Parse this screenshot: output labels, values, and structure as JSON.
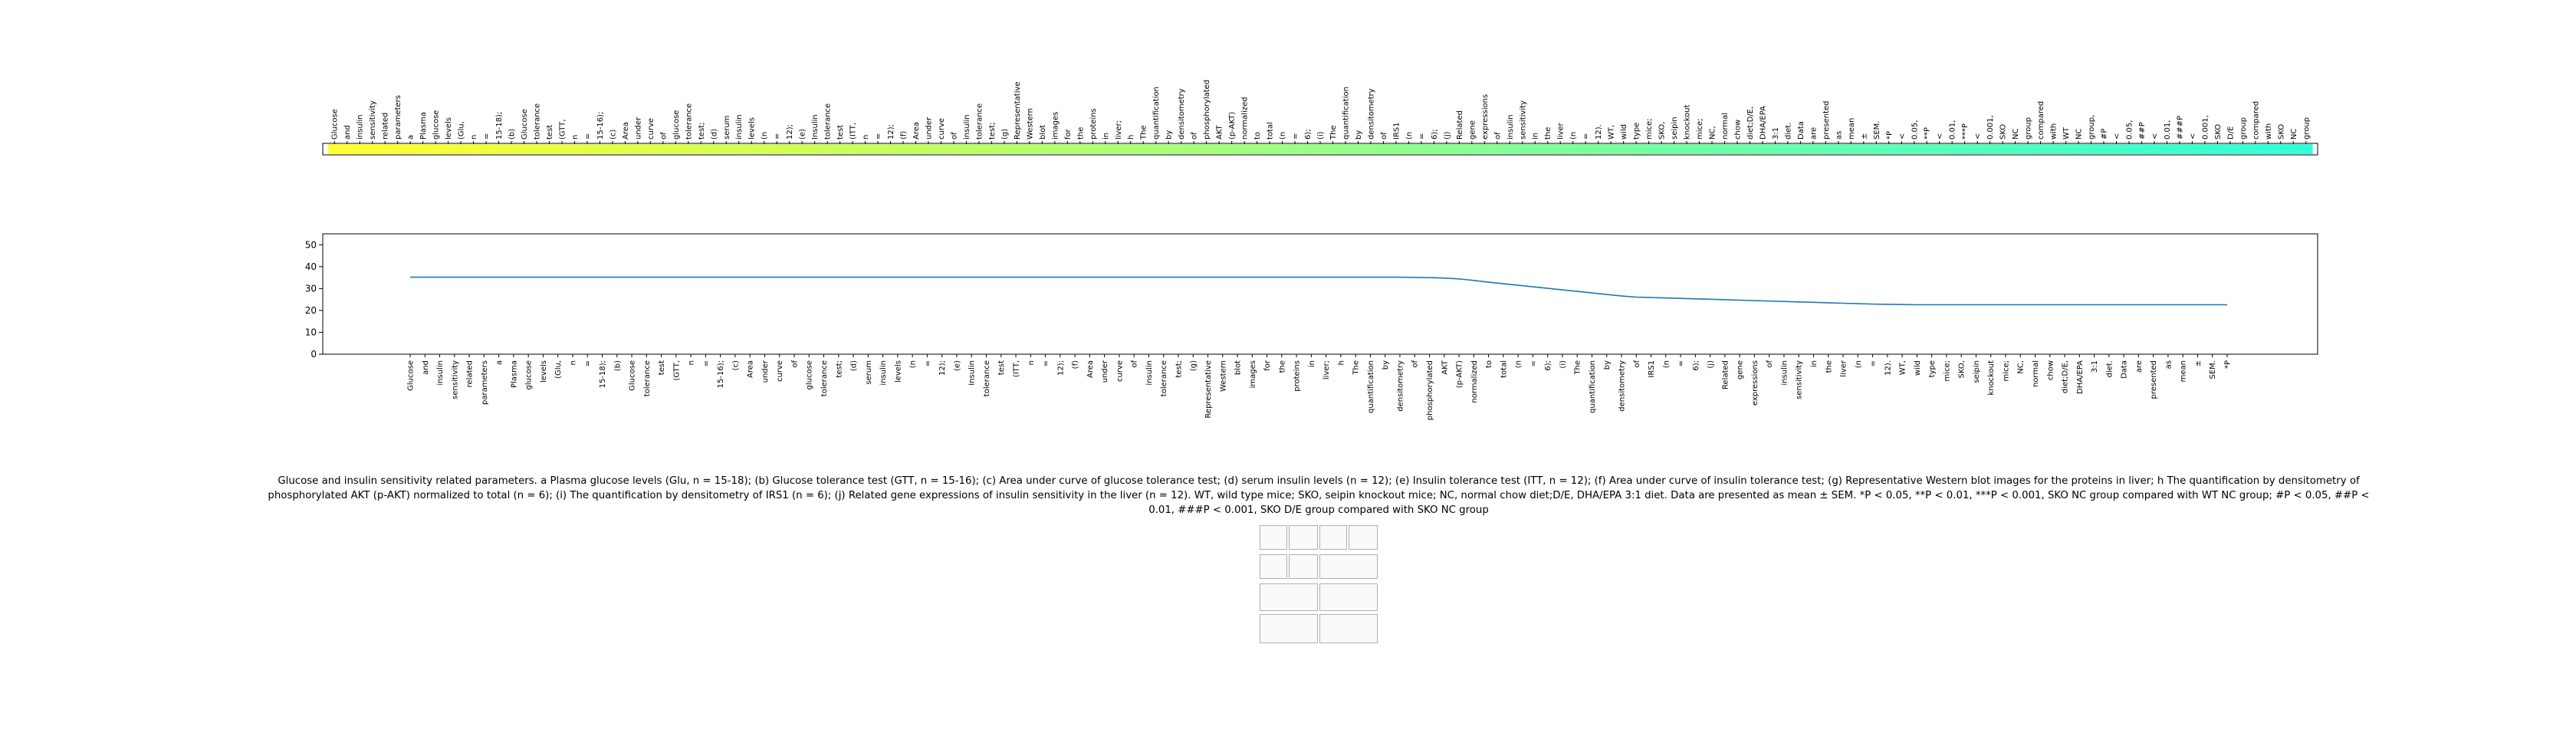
{
  "chart_data": [
    {
      "type": "heatmap",
      "colormap": "yellow-to-turquoise",
      "color_start": "#ffff33",
      "color_end": "#33ffd9",
      "words": [
        "Glucose",
        "and",
        "insulin",
        "sensitivity",
        "related",
        "parameters",
        "a",
        "Plasma",
        "glucose",
        "levels",
        "(Glu,",
        "n",
        "=",
        "15-18);",
        "(b)",
        "Glucose",
        "tolerance",
        "test",
        "(GTT,",
        "n",
        "=",
        "15-16);",
        "(c)",
        "Area",
        "under",
        "curve",
        "of",
        "glucose",
        "tolerance",
        "test;",
        "(d)",
        "serum",
        "insulin",
        "levels",
        "(n",
        "=",
        "12);",
        "(e)",
        "Insulin",
        "tolerance",
        "test",
        "(ITT,",
        "n",
        "=",
        "12);",
        "(f)",
        "Area",
        "under",
        "curve",
        "of",
        "insulin",
        "tolerance",
        "test;",
        "(g)",
        "Representative",
        "Western",
        "blot",
        "images",
        "for",
        "the",
        "proteins",
        "in",
        "liver;",
        "h",
        "The",
        "quantification",
        "by",
        "densitometry",
        "of",
        "phosphorylated",
        "AKT",
        "(p-AKT)",
        "normalized",
        "to",
        "total",
        "(n",
        "=",
        "6);",
        "(i)",
        "The",
        "quantification",
        "by",
        "densitometry",
        "of",
        "IRS1",
        "(n",
        "=",
        "6);",
        "(j)",
        "Related",
        "gene",
        "expressions",
        "of",
        "insulin",
        "sensitivity",
        "in",
        "the",
        "liver",
        "(n",
        "=",
        "12).",
        "WT,",
        "wild",
        "type",
        "mice;",
        "SKO,",
        "seipin",
        "knockout",
        "mice;",
        "NC,",
        "normal",
        "chow",
        "diet;D/E,",
        "DHA/EPA",
        "3:1",
        "diet.",
        "Data",
        "are",
        "presented",
        "as",
        "mean",
        "±",
        "SEM.",
        "*P",
        "<",
        "0.05,",
        "**P",
        "<",
        "0.01,",
        "***P",
        "<",
        "0.001,",
        "SKO",
        "NC",
        "group",
        "compared",
        "with",
        "WT",
        "NC",
        "group,",
        "#P",
        "<",
        "0.05,",
        "##P",
        "<",
        "0.01,",
        "###P",
        "<",
        "0.001,",
        "SKO",
        "D/E",
        "group",
        "compared",
        "with",
        "SKO",
        "NC",
        "group"
      ]
    },
    {
      "type": "line",
      "ylim": [
        0,
        55
      ],
      "yticks": [
        0,
        10,
        20,
        30,
        40,
        50
      ],
      "grid": false,
      "line_color": "#1f77b4",
      "values": [
        35.2,
        35.2,
        35.2,
        35.2,
        35.2,
        35.2,
        35.2,
        35.2,
        35.2,
        35.2,
        35.2,
        35.2,
        35.2,
        35.2,
        35.2,
        35.2,
        35.2,
        35.2,
        35.2,
        35.2,
        35.2,
        35.2,
        35.2,
        35.2,
        35.2,
        35.2,
        35.2,
        35.2,
        35.2,
        35.2,
        35.2,
        35.2,
        35.2,
        35.2,
        35.2,
        35.2,
        35.2,
        35.2,
        35.2,
        35.2,
        35.2,
        35.2,
        35.2,
        35.2,
        35.2,
        35.2,
        35.2,
        35.2,
        35.2,
        35.2,
        35.2,
        35.2,
        35.2,
        35.2,
        35.2,
        35.2,
        35.2,
        35.2,
        35.2,
        35.2,
        35.2,
        35.2,
        35.2,
        35.2,
        35.2,
        35.2,
        35.2,
        35.2,
        35.1,
        35.0,
        34.8,
        34.4,
        33.7,
        32.9,
        32.2,
        31.5,
        30.8,
        30.1,
        29.4,
        28.7,
        28.0,
        27.3,
        26.6,
        26.1,
        25.9,
        25.7,
        25.5,
        25.3,
        25.1,
        24.9,
        24.7,
        24.5,
        24.3,
        24.1,
        23.9,
        23.7,
        23.5,
        23.3,
        23.1,
        22.9,
        22.8,
        22.7,
        22.6,
        22.6,
        22.6,
        22.6,
        22.6,
        22.6,
        22.6,
        22.6,
        22.6,
        22.6,
        22.6,
        22.6,
        22.6,
        22.6,
        22.6,
        22.6,
        22.6,
        22.6,
        22.6,
        22.6,
        22.6,
        22.6
      ]
    }
  ],
  "caption": "Glucose and insulin sensitivity related parameters. a Plasma glucose levels (Glu, n = 15-18); (b) Glucose tolerance test (GTT, n = 15-16); (c) Area under curve of glucose tolerance test; (d) serum insulin levels (n = 12); (e) Insulin tolerance test (ITT, n = 12); (f) Area under curve of insulin tolerance test; (g) Representative Western blot images for the proteins in liver; h The quantification by densitometry of phosphorylated AKT (p-AKT) normalized to total (n = 6); (i) The quantification by densitometry of IRS1 (n = 6); (j) Related gene expressions of insulin sensitivity in the liver (n = 12). WT, wild type mice; SKO, seipin knockout mice; NC, normal chow diet;D/E, DHA/EPA 3:1 diet. Data are presented as mean ± SEM. *P < 0.05, **P < 0.01, ***P < 0.001, SKO NC group compared with WT NC group; #P < 0.05, ##P < 0.01, ###P < 0.001, SKO D/E group compared with SKO NC group"
}
